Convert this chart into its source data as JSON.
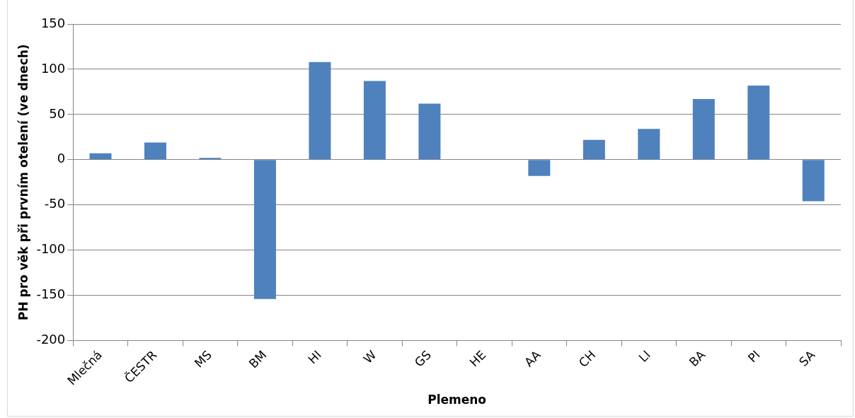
{
  "chart_data": {
    "type": "bar",
    "xlabel": "Plemeno",
    "ylabel": "PH pro věk při prvním otelení (ve dnech)",
    "categories": [
      "Mlečná",
      "ČESTR",
      "MS",
      "BM",
      "HI",
      "W",
      "GS",
      "HE",
      "AA",
      "CH",
      "LI",
      "BA",
      "PI",
      "SA"
    ],
    "values": [
      7,
      19,
      2,
      -154,
      108,
      87,
      62,
      0,
      -18,
      22,
      34,
      67,
      82,
      -46
    ],
    "color": "#4f81bd",
    "ylim": [
      -200,
      150
    ],
    "yticks": [
      -200,
      -150,
      -100,
      -50,
      0,
      50,
      100,
      150
    ],
    "grid": "y",
    "legend": false
  }
}
